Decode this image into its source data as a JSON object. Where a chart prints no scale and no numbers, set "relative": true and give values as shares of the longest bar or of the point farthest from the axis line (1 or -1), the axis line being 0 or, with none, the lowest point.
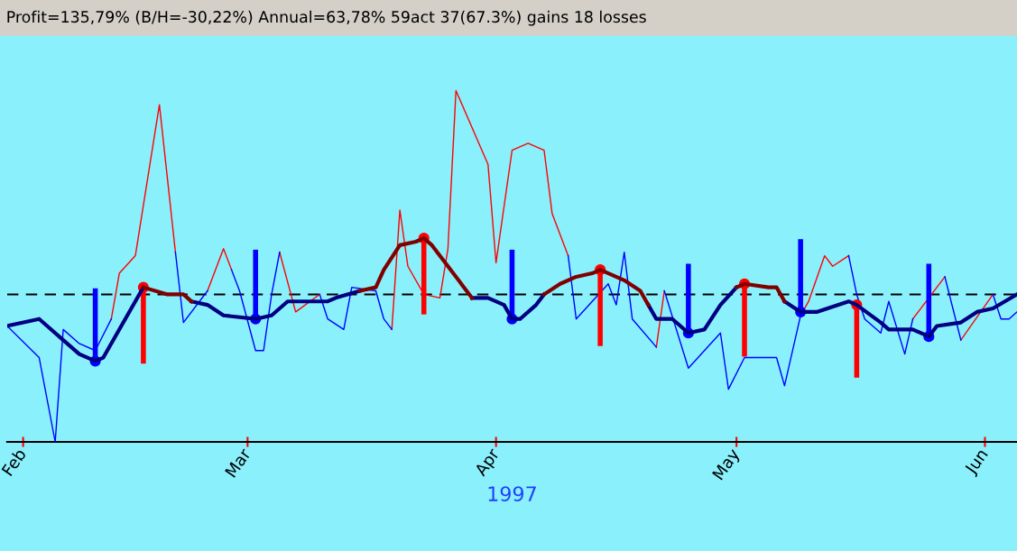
{
  "chart_data": {
    "type": "line",
    "title": "Profit=135,79% (B/H=-30,22%) Annual=63,78% 59act 37(67.3%) gains 18 losses",
    "xlabel": "1997",
    "relative": true,
    "xlim": [
      "1997-01-30",
      "1997-06-05"
    ],
    "xticks": [
      {
        "value": "1997-02-01",
        "label": "Feb"
      },
      {
        "value": "1997-03-01",
        "label": "Mar"
      },
      {
        "value": "1997-04-01",
        "label": "Apr"
      },
      {
        "value": "1997-05-01",
        "label": "May"
      },
      {
        "value": "1997-06-01",
        "label": "Jun"
      }
    ],
    "tick_labels": "x",
    "grid": false,
    "ref_lines": [
      {
        "axis": "y",
        "value": 0.42,
        "color": "#000000",
        "line_style": "dashed"
      }
    ],
    "series": [
      {
        "color": "#ff0000",
        "x": [
          "1997-02-12",
          "1997-02-13",
          "1997-02-15",
          "1997-02-18",
          "1997-02-20"
        ],
        "values": [
          0.35,
          0.48,
          0.53,
          0.96,
          0.54
        ]
      },
      {
        "color": "#ff0000",
        "x": [
          "1997-02-24",
          "1997-02-26",
          "1997-02-27"
        ],
        "values": [
          0.43,
          0.55,
          0.49
        ]
      },
      {
        "color": "#ff0000",
        "x": [
          "1997-03-05",
          "1997-03-07",
          "1997-03-10"
        ],
        "values": [
          0.54,
          0.37,
          0.42
        ]
      },
      {
        "color": "#ff0000",
        "x": [
          "1997-03-19",
          "1997-03-20",
          "1997-03-21",
          "1997-03-23",
          "1997-03-25",
          "1997-03-26",
          "1997-03-27",
          "1997-03-31",
          "1997-04-01",
          "1997-04-03",
          "1997-04-05",
          "1997-04-07",
          "1997-04-08",
          "1997-04-10"
        ],
        "values": [
          0.32,
          0.66,
          0.5,
          0.42,
          0.41,
          0.55,
          1.0,
          0.79,
          0.51,
          0.83,
          0.85,
          0.83,
          0.65,
          0.53
        ]
      },
      {
        "color": "#ff0000",
        "x": [
          "1997-04-21",
          "1997-04-22"
        ],
        "values": [
          0.27,
          0.43
        ]
      },
      {
        "color": "#ff0000",
        "x": [
          "1997-05-09",
          "1997-05-10",
          "1997-05-12",
          "1997-05-13",
          "1997-05-15"
        ],
        "values": [
          0.36,
          0.4,
          0.53,
          0.5,
          0.53
        ]
      },
      {
        "color": "#ff0000",
        "x": [
          "1997-05-23",
          "1997-05-27"
        ],
        "values": [
          0.35,
          0.47
        ]
      },
      {
        "color": "#ff0000",
        "x": [
          "1997-05-29",
          "1997-06-02"
        ],
        "values": [
          0.29,
          0.42
        ]
      },
      {
        "color": "#0000ff",
        "x": [
          "1997-01-30",
          "1997-02-03",
          "1997-02-05",
          "1997-02-06",
          "1997-02-08",
          "1997-02-10",
          "1997-02-12"
        ],
        "values": [
          0.33,
          0.24,
          0.0,
          0.32,
          0.28,
          0.26,
          0.35
        ]
      },
      {
        "color": "#0000ff",
        "x": [
          "1997-02-20",
          "1997-02-21",
          "1997-02-24"
        ],
        "values": [
          0.54,
          0.34,
          0.43
        ]
      },
      {
        "color": "#0000ff",
        "x": [
          "1997-02-27",
          "1997-02-28",
          "1997-03-02",
          "1997-03-03",
          "1997-03-04",
          "1997-03-05"
        ],
        "values": [
          0.49,
          0.43,
          0.26,
          0.26,
          0.42,
          0.54
        ]
      },
      {
        "color": "#0000ff",
        "x": [
          "1997-03-10",
          "1997-03-11",
          "1997-03-13",
          "1997-03-14",
          "1997-03-17",
          "1997-03-18",
          "1997-03-19"
        ],
        "values": [
          0.42,
          0.35,
          0.32,
          0.44,
          0.43,
          0.35,
          0.32
        ]
      },
      {
        "color": "#0000ff",
        "x": [
          "1997-04-10",
          "1997-04-11",
          "1997-04-15",
          "1997-04-16",
          "1997-04-17",
          "1997-04-18",
          "1997-04-21"
        ],
        "values": [
          0.53,
          0.35,
          0.45,
          0.39,
          0.54,
          0.35,
          0.27
        ]
      },
      {
        "color": "#0000ff",
        "x": [
          "1997-04-22",
          "1997-04-25",
          "1997-04-29",
          "1997-04-30",
          "1997-05-02",
          "1997-05-05",
          "1997-05-06",
          "1997-05-07",
          "1997-05-09"
        ],
        "values": [
          0.43,
          0.21,
          0.31,
          0.15,
          0.24,
          0.24,
          0.24,
          0.16,
          0.36
        ]
      },
      {
        "color": "#0000ff",
        "x": [
          "1997-05-15",
          "1997-05-16",
          "1997-05-17",
          "1997-05-19",
          "1997-05-20",
          "1997-05-22",
          "1997-05-23"
        ],
        "values": [
          0.53,
          0.42,
          0.35,
          0.31,
          0.4,
          0.25,
          0.35
        ]
      },
      {
        "color": "#0000ff",
        "x": [
          "1997-05-27",
          "1997-05-29"
        ],
        "values": [
          0.47,
          0.29
        ]
      },
      {
        "color": "#0000ff",
        "x": [
          "1997-06-02",
          "1997-06-03",
          "1997-06-04",
          "1997-06-05"
        ],
        "values": [
          0.42,
          0.35,
          0.35,
          0.37
        ]
      },
      {
        "color": "#000080",
        "x": [
          "1997-01-30",
          "1997-02-03",
          "1997-02-04",
          "1997-02-06",
          "1997-02-08",
          "1997-02-10",
          "1997-02-11",
          "1997-02-16"
        ],
        "values": [
          0.33,
          0.35,
          0.33,
          0.29,
          0.25,
          0.23,
          0.24,
          0.44
        ]
      },
      {
        "color": "#000080",
        "x": [
          "1997-02-22",
          "1997-02-24",
          "1997-02-26",
          "1997-03-02",
          "1997-03-04",
          "1997-03-06",
          "1997-03-11",
          "1997-03-12",
          "1997-03-15"
        ],
        "values": [
          0.4,
          0.39,
          0.36,
          0.35,
          0.36,
          0.4,
          0.4,
          0.41,
          0.43
        ]
      },
      {
        "color": "#000080",
        "x": [
          "1997-03-29",
          "1997-03-31",
          "1997-04-02",
          "1997-04-03",
          "1997-04-04",
          "1997-04-06",
          "1997-04-07"
        ],
        "values": [
          0.41,
          0.41,
          0.39,
          0.35,
          0.35,
          0.39,
          0.42
        ]
      },
      {
        "color": "#000080",
        "x": [
          "1997-04-20",
          "1997-04-21",
          "1997-04-23",
          "1997-04-25",
          "1997-04-27",
          "1997-04-29",
          "1997-05-01"
        ],
        "values": [
          0.39,
          0.35,
          0.35,
          0.31,
          0.32,
          0.39,
          0.44
        ]
      },
      {
        "color": "#000080",
        "x": [
          "1997-05-07",
          "1997-05-09",
          "1997-05-11",
          "1997-05-15",
          "1997-05-16",
          "1997-05-19",
          "1997-05-20",
          "1997-05-23",
          "1997-05-25",
          "1997-05-26",
          "1997-05-29",
          "1997-05-31",
          "1997-06-02",
          "1997-06-05"
        ],
        "values": [
          0.4,
          0.37,
          0.37,
          0.4,
          0.39,
          0.34,
          0.32,
          0.32,
          0.3,
          0.33,
          0.34,
          0.37,
          0.38,
          0.42
        ]
      },
      {
        "color": "#800000",
        "x": [
          "1997-02-16",
          "1997-02-19",
          "1997-02-21",
          "1997-02-22"
        ],
        "values": [
          0.44,
          0.42,
          0.42,
          0.4
        ]
      },
      {
        "color": "#800000",
        "x": [
          "1997-03-15",
          "1997-03-17",
          "1997-03-18",
          "1997-03-20",
          "1997-03-22",
          "1997-03-23",
          "1997-03-24",
          "1997-03-26",
          "1997-03-28",
          "1997-03-29"
        ],
        "values": [
          0.43,
          0.44,
          0.49,
          0.56,
          0.57,
          0.58,
          0.56,
          0.5,
          0.44,
          0.41
        ]
      },
      {
        "color": "#800000",
        "x": [
          "1997-04-07",
          "1997-04-09",
          "1997-04-11",
          "1997-04-13",
          "1997-04-14",
          "1997-04-17",
          "1997-04-19",
          "1997-04-20"
        ],
        "values": [
          0.42,
          0.45,
          0.47,
          0.48,
          0.49,
          0.46,
          0.43,
          0.39
        ]
      },
      {
        "color": "#800000",
        "x": [
          "1997-05-01",
          "1997-05-02",
          "1997-05-05",
          "1997-05-06",
          "1997-05-07"
        ],
        "values": [
          0.44,
          0.45,
          0.44,
          0.44,
          0.4
        ]
      },
      {
        "color": "#0000ff",
        "x": [
          "1997-02-10",
          "1997-02-10"
        ],
        "values": [
          0.23,
          0.43
        ]
      },
      {
        "color": "#0000ff",
        "x": [
          "1997-03-02",
          "1997-03-02"
        ],
        "values": [
          0.35,
          0.54
        ]
      },
      {
        "color": "#0000ff",
        "x": [
          "1997-04-03",
          "1997-04-03"
        ],
        "values": [
          0.35,
          0.54
        ]
      },
      {
        "color": "#0000ff",
        "x": [
          "1997-04-25",
          "1997-04-25"
        ],
        "values": [
          0.31,
          0.5
        ]
      },
      {
        "color": "#0000ff",
        "x": [
          "1997-05-09",
          "1997-05-09"
        ],
        "values": [
          0.37,
          0.57
        ]
      },
      {
        "color": "#0000ff",
        "x": [
          "1997-05-25",
          "1997-05-25"
        ],
        "values": [
          0.3,
          0.5
        ]
      },
      {
        "color": "#ff0000",
        "x": [
          "1997-02-16",
          "1997-02-16"
        ],
        "values": [
          0.44,
          0.23
        ]
      },
      {
        "color": "#ff0000",
        "x": [
          "1997-03-23",
          "1997-03-23"
        ],
        "values": [
          0.58,
          0.37
        ]
      },
      {
        "color": "#ff0000",
        "x": [
          "1997-04-14",
          "1997-04-14"
        ],
        "values": [
          0.49,
          0.28
        ]
      },
      {
        "color": "#ff0000",
        "x": [
          "1997-05-02",
          "1997-05-02"
        ],
        "values": [
          0.45,
          0.25
        ]
      },
      {
        "color": "#ff0000",
        "x": [
          "1997-05-16",
          "1997-05-16"
        ],
        "values": [
          0.39,
          0.19
        ]
      },
      {
        "type": "scatter",
        "color": "#0000ff",
        "marker": "circle",
        "x": [
          "1997-02-10",
          "1997-03-02",
          "1997-04-03",
          "1997-04-25",
          "1997-05-09",
          "1997-05-25"
        ],
        "values": [
          0.23,
          0.35,
          0.35,
          0.31,
          0.37,
          0.3
        ]
      },
      {
        "type": "scatter",
        "color": "#ff0000",
        "marker": "circle",
        "x": [
          "1997-02-16",
          "1997-03-23",
          "1997-04-14",
          "1997-05-02",
          "1997-05-16"
        ],
        "values": [
          0.44,
          0.58,
          0.49,
          0.45,
          0.39
        ]
      }
    ]
  }
}
